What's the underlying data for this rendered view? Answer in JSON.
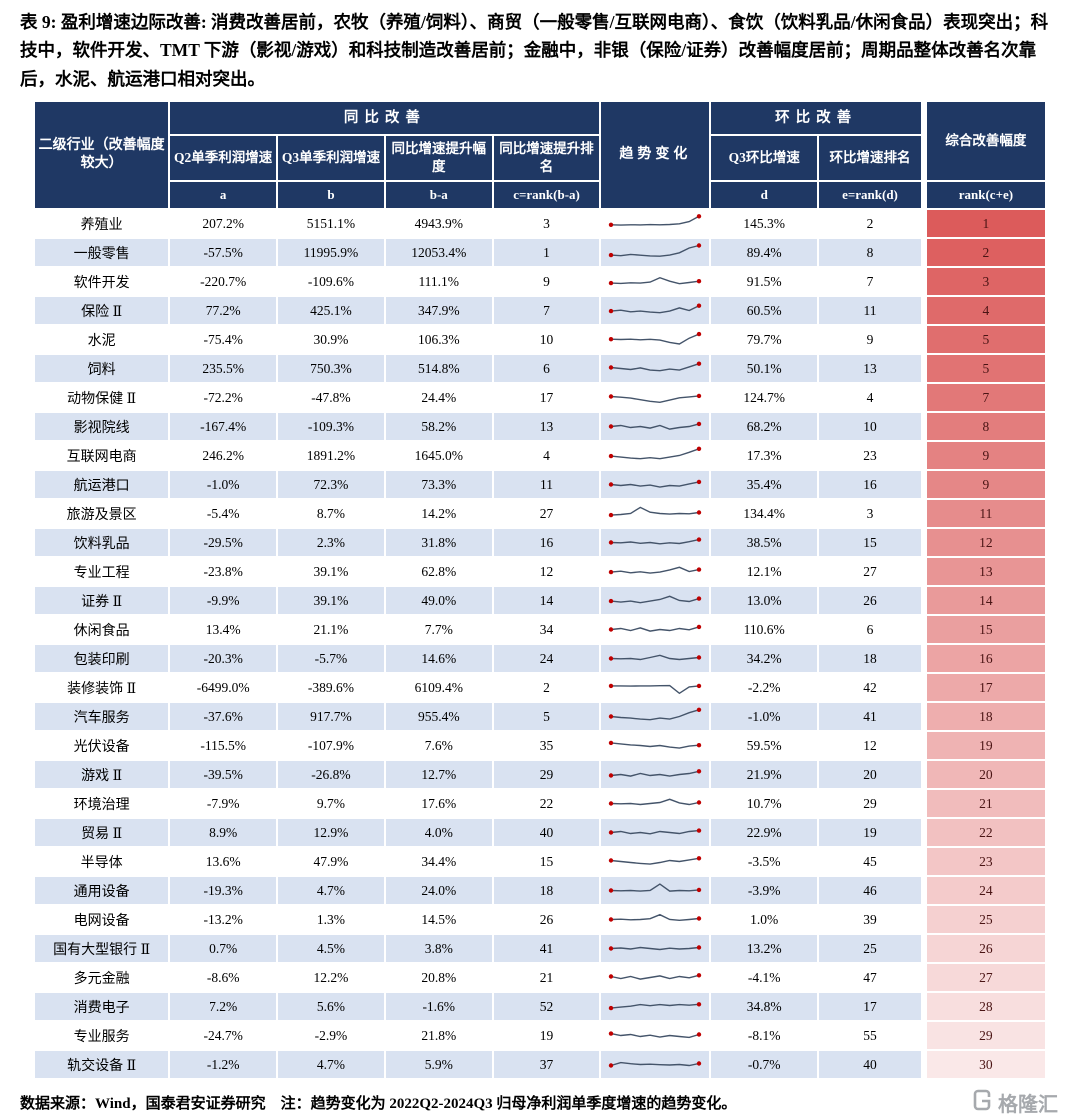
{
  "title": "表 9: 盈利增速边际改善: 消费改善居前，农牧（养殖/饲料）、商贸（一般零售/互联网电商）、食饮（饮料乳品/休闲食品）表现突出；科技中，软件开发、TMT 下游（影视/游戏）和科技制造改善居前；金融中，非银（保险/证券）改善幅度居前；周期品整体改善名次靠后，水泥、航运港口相对突出。",
  "footer": "数据来源：Wind，国泰君安证券研究　注：趋势变化为 2022Q2-2024Q3 归母净利润单季度增速的趋势变化。",
  "watermark": "格隆汇",
  "colors": {
    "header_bg": "#1F3864",
    "row_alt_bg": "#D9E2F1",
    "rank_top": "#DC5B5B",
    "rank_bottom": "#FAE8E8",
    "spark_line": "#44546A",
    "spark_marker": "#C00000"
  },
  "table": {
    "header": {
      "industry": "二级行业（改善幅度较大）",
      "yoy_group": "同比改善",
      "trend": "趋势变化",
      "qoq_group": "环比改善",
      "composite": "综合改善幅度",
      "cols": [
        "Q2单季利润增速",
        "Q3单季利润增速",
        "同比增速提升幅度",
        "同比增速提升排名",
        "Q3环比增速",
        "环比增速排名"
      ],
      "sub": [
        "a",
        "b",
        "b-a",
        "c=rank(b-a)",
        "d",
        "e=rank(d)",
        "rank(c+e)"
      ]
    },
    "rows": [
      {
        "name": "养殖业",
        "a": "207.2%",
        "b": "5151.1%",
        "ba": "4943.9%",
        "c": "3",
        "d": "145.3%",
        "e": "2",
        "rank": "1",
        "trend": [
          0.42,
          0.4,
          0.42,
          0.41,
          0.43,
          0.42,
          0.44,
          0.48,
          0.62,
          0.95
        ]
      },
      {
        "name": "一般零售",
        "a": "-57.5%",
        "b": "11995.9%",
        "ba": "12053.4%",
        "c": "1",
        "d": "89.4%",
        "e": "8",
        "rank": "2",
        "trend": [
          0.34,
          0.3,
          0.38,
          0.33,
          0.29,
          0.27,
          0.34,
          0.48,
          0.78,
          0.94
        ]
      },
      {
        "name": "软件开发",
        "a": "-220.7%",
        "b": "-109.6%",
        "ba": "111.1%",
        "c": "9",
        "d": "91.5%",
        "e": "7",
        "rank": "3",
        "trend": [
          0.4,
          0.38,
          0.42,
          0.4,
          0.46,
          0.74,
          0.52,
          0.36,
          0.44,
          0.52
        ]
      },
      {
        "name": "保险 Ⅱ",
        "a": "77.2%",
        "b": "425.1%",
        "ba": "347.9%",
        "c": "7",
        "d": "60.5%",
        "e": "11",
        "rank": "4",
        "trend": [
          0.46,
          0.52,
          0.42,
          0.46,
          0.4,
          0.36,
          0.46,
          0.66,
          0.5,
          0.8
        ]
      },
      {
        "name": "水泥",
        "a": "-75.4%",
        "b": "30.9%",
        "ba": "106.3%",
        "c": "10",
        "d": "79.7%",
        "e": "9",
        "rank": "5",
        "trend": [
          0.52,
          0.5,
          0.52,
          0.48,
          0.51,
          0.46,
          0.32,
          0.22,
          0.58,
          0.84
        ]
      },
      {
        "name": "饲料",
        "a": "235.5%",
        "b": "750.3%",
        "ba": "514.8%",
        "c": "6",
        "d": "50.1%",
        "e": "13",
        "rank": "5",
        "trend": [
          0.56,
          0.5,
          0.44,
          0.54,
          0.4,
          0.36,
          0.46,
          0.4,
          0.6,
          0.8
        ]
      },
      {
        "name": "动物保健 Ⅱ",
        "a": "-72.2%",
        "b": "-47.8%",
        "ba": "24.4%",
        "c": "17",
        "d": "124.7%",
        "e": "4",
        "rank": "7",
        "trend": [
          0.56,
          0.52,
          0.46,
          0.36,
          0.26,
          0.2,
          0.34,
          0.48,
          0.54,
          0.6
        ]
      },
      {
        "name": "影视院线",
        "a": "-167.4%",
        "b": "-109.3%",
        "ba": "58.2%",
        "c": "13",
        "d": "68.2%",
        "e": "10",
        "rank": "8",
        "trend": [
          0.5,
          0.56,
          0.44,
          0.5,
          0.4,
          0.56,
          0.34,
          0.44,
          0.5,
          0.66
        ]
      },
      {
        "name": "互联网电商",
        "a": "246.2%",
        "b": "1891.2%",
        "ba": "1645.0%",
        "c": "4",
        "d": "17.3%",
        "e": "23",
        "rank": "9",
        "trend": [
          0.46,
          0.4,
          0.34,
          0.3,
          0.36,
          0.3,
          0.4,
          0.5,
          0.7,
          0.92
        ]
      },
      {
        "name": "航运港口",
        "a": "-1.0%",
        "b": "72.3%",
        "ba": "73.3%",
        "c": "11",
        "d": "35.4%",
        "e": "16",
        "rank": "9",
        "trend": [
          0.5,
          0.44,
          0.5,
          0.4,
          0.46,
          0.34,
          0.44,
          0.4,
          0.54,
          0.66
        ]
      },
      {
        "name": "旅游及景区",
        "a": "-5.4%",
        "b": "8.7%",
        "ba": "14.2%",
        "c": "27",
        "d": "134.4%",
        "e": "3",
        "rank": "11",
        "trend": [
          0.4,
          0.44,
          0.5,
          0.88,
          0.58,
          0.5,
          0.46,
          0.5,
          0.48,
          0.56
        ]
      },
      {
        "name": "饮料乳品",
        "a": "-29.5%",
        "b": "2.3%",
        "ba": "31.8%",
        "c": "16",
        "d": "38.5%",
        "e": "15",
        "rank": "12",
        "trend": [
          0.5,
          0.48,
          0.53,
          0.45,
          0.5,
          0.42,
          0.48,
          0.44,
          0.55,
          0.68
        ]
      },
      {
        "name": "专业工程",
        "a": "-23.8%",
        "b": "39.1%",
        "ba": "62.8%",
        "c": "12",
        "d": "12.1%",
        "e": "27",
        "rank": "13",
        "trend": [
          0.46,
          0.52,
          0.42,
          0.48,
          0.4,
          0.46,
          0.6,
          0.76,
          0.5,
          0.62
        ]
      },
      {
        "name": "证券 Ⅱ",
        "a": "-9.9%",
        "b": "39.1%",
        "ba": "49.0%",
        "c": "14",
        "d": "13.0%",
        "e": "26",
        "rank": "14",
        "trend": [
          0.46,
          0.4,
          0.46,
          0.36,
          0.46,
          0.56,
          0.76,
          0.5,
          0.44,
          0.62
        ]
      },
      {
        "name": "休闲食品",
        "a": "13.4%",
        "b": "21.1%",
        "ba": "7.7%",
        "c": "34",
        "d": "110.6%",
        "e": "6",
        "rank": "15",
        "trend": [
          0.5,
          0.56,
          0.44,
          0.6,
          0.4,
          0.5,
          0.44,
          0.56,
          0.48,
          0.66
        ]
      },
      {
        "name": "包装印刷",
        "a": "-20.3%",
        "b": "-5.7%",
        "ba": "14.6%",
        "c": "24",
        "d": "34.2%",
        "e": "18",
        "rank": "16",
        "trend": [
          0.5,
          0.48,
          0.5,
          0.44,
          0.56,
          0.7,
          0.5,
          0.44,
          0.5,
          0.56
        ]
      },
      {
        "name": "装修装饰 Ⅱ",
        "a": "-6499.0%",
        "b": "-389.6%",
        "ba": "6109.4%",
        "c": "2",
        "d": "-2.2%",
        "e": "42",
        "rank": "17",
        "trend": [
          0.6,
          0.6,
          0.59,
          0.6,
          0.6,
          0.61,
          0.62,
          0.14,
          0.54,
          0.6
        ]
      },
      {
        "name": "汽车服务",
        "a": "-37.6%",
        "b": "917.7%",
        "ba": "955.4%",
        "c": "5",
        "d": "-1.0%",
        "e": "41",
        "rank": "18",
        "trend": [
          0.5,
          0.44,
          0.4,
          0.34,
          0.3,
          0.4,
          0.34,
          0.5,
          0.74,
          0.92
        ]
      },
      {
        "name": "光伏设备",
        "a": "-115.5%",
        "b": "-107.9%",
        "ba": "7.6%",
        "c": "35",
        "d": "59.5%",
        "e": "12",
        "rank": "19",
        "trend": [
          0.66,
          0.6,
          0.54,
          0.5,
          0.44,
          0.5,
          0.4,
          0.34,
          0.46,
          0.52
        ]
      },
      {
        "name": "游戏 Ⅱ",
        "a": "-39.5%",
        "b": "-26.8%",
        "ba": "12.7%",
        "c": "29",
        "d": "21.9%",
        "e": "20",
        "rank": "20",
        "trend": [
          0.44,
          0.5,
          0.4,
          0.56,
          0.44,
          0.5,
          0.4,
          0.5,
          0.56,
          0.7
        ]
      },
      {
        "name": "环境治理",
        "a": "-7.9%",
        "b": "9.7%",
        "ba": "17.6%",
        "c": "22",
        "d": "10.7%",
        "e": "29",
        "rank": "21",
        "trend": [
          0.5,
          0.48,
          0.5,
          0.44,
          0.5,
          0.56,
          0.76,
          0.54,
          0.44,
          0.56
        ]
      },
      {
        "name": "贸易 Ⅱ",
        "a": "8.9%",
        "b": "12.9%",
        "ba": "4.0%",
        "c": "40",
        "d": "22.9%",
        "e": "19",
        "rank": "22",
        "trend": [
          0.5,
          0.56,
          0.44,
          0.5,
          0.42,
          0.56,
          0.5,
          0.44,
          0.56,
          0.62
        ]
      },
      {
        "name": "半导体",
        "a": "13.6%",
        "b": "47.9%",
        "ba": "34.4%",
        "c": "15",
        "d": "-3.5%",
        "e": "45",
        "rank": "23",
        "trend": [
          0.56,
          0.5,
          0.44,
          0.38,
          0.34,
          0.44,
          0.56,
          0.5,
          0.6,
          0.7
        ]
      },
      {
        "name": "通用设备",
        "a": "-19.3%",
        "b": "4.7%",
        "ba": "24.0%",
        "c": "18",
        "d": "-3.9%",
        "e": "46",
        "rank": "24",
        "trend": [
          0.5,
          0.48,
          0.5,
          0.46,
          0.5,
          0.9,
          0.46,
          0.5,
          0.48,
          0.54
        ]
      },
      {
        "name": "电网设备",
        "a": "-13.2%",
        "b": "1.3%",
        "ba": "14.5%",
        "c": "26",
        "d": "1.0%",
        "e": "39",
        "rank": "25",
        "trend": [
          0.5,
          0.52,
          0.48,
          0.5,
          0.55,
          0.8,
          0.5,
          0.45,
          0.5,
          0.56
        ]
      },
      {
        "name": "国有大型银行 Ⅱ",
        "a": "0.7%",
        "b": "4.5%",
        "ba": "3.8%",
        "c": "41",
        "d": "13.2%",
        "e": "25",
        "rank": "26",
        "trend": [
          0.5,
          0.53,
          0.47,
          0.56,
          0.5,
          0.44,
          0.52,
          0.47,
          0.5,
          0.56
        ]
      },
      {
        "name": "多元金融",
        "a": "-8.6%",
        "b": "12.2%",
        "ba": "20.8%",
        "c": "21",
        "d": "-4.1%",
        "e": "47",
        "rank": "27",
        "trend": [
          0.56,
          0.44,
          0.56,
          0.4,
          0.5,
          0.6,
          0.44,
          0.56,
          0.48,
          0.64
        ]
      },
      {
        "name": "消费电子",
        "a": "7.2%",
        "b": "5.6%",
        "ba": "-1.6%",
        "c": "52",
        "d": "34.8%",
        "e": "17",
        "rank": "28",
        "trend": [
          0.4,
          0.46,
          0.52,
          0.62,
          0.55,
          0.62,
          0.56,
          0.62,
          0.58,
          0.64
        ]
      },
      {
        "name": "专业服务",
        "a": "-24.7%",
        "b": "-2.9%",
        "ba": "21.8%",
        "c": "19",
        "d": "-8.1%",
        "e": "55",
        "rank": "29",
        "trend": [
          0.62,
          0.5,
          0.56,
          0.44,
          0.52,
          0.4,
          0.5,
          0.44,
          0.38,
          0.56
        ]
      },
      {
        "name": "轨交设备 Ⅱ",
        "a": "-1.2%",
        "b": "4.7%",
        "ba": "5.9%",
        "c": "37",
        "d": "-0.7%",
        "e": "40",
        "rank": "30",
        "trend": [
          0.44,
          0.62,
          0.55,
          0.5,
          0.52,
          0.49,
          0.47,
          0.5,
          0.44,
          0.56
        ]
      }
    ]
  }
}
